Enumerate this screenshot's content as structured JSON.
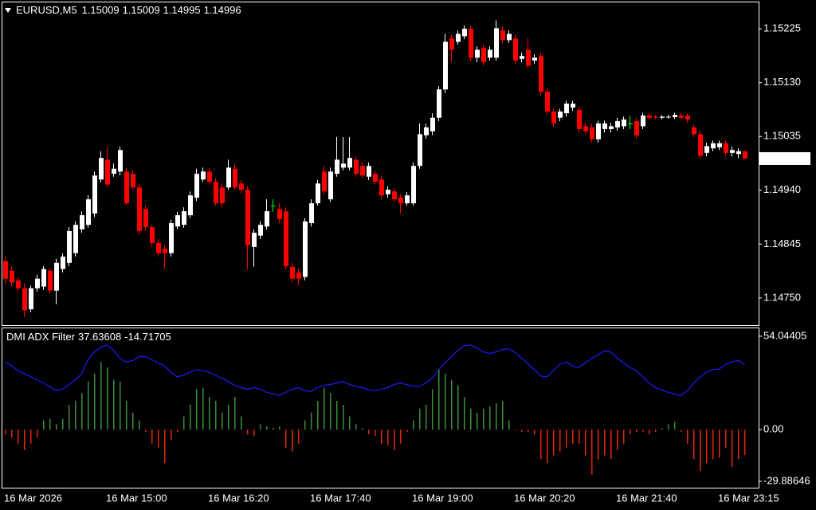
{
  "chart_data": [
    {
      "type": "candlestick",
      "title": "EURUSD,M5",
      "categories": [
        "16 Mar 2026",
        null,
        null,
        null,
        null,
        null,
        null,
        null,
        null,
        null,
        null,
        null,
        null,
        null,
        null,
        null,
        "16 Mar 15:00",
        null,
        null,
        null,
        null,
        null,
        null,
        null,
        null,
        null,
        null,
        null,
        null,
        null,
        null,
        null,
        "16 Mar 16:20",
        null,
        null,
        null,
        null,
        null,
        null,
        null,
        null,
        null,
        null,
        null,
        null,
        null,
        null,
        null,
        "16 Mar 17:40",
        null,
        null,
        null,
        null,
        null,
        null,
        null,
        null,
        null,
        null,
        null,
        null,
        null,
        null,
        null,
        "16 Mar 19:00",
        null,
        null,
        null,
        null,
        null,
        null,
        null,
        null,
        null,
        null,
        null,
        null,
        null,
        null,
        null,
        "16 Mar 20:20",
        null,
        null,
        null,
        null,
        null,
        null,
        null,
        null,
        null,
        null,
        null,
        null,
        null,
        null,
        null,
        "16 Mar 21:40",
        null,
        null,
        null,
        null,
        null,
        null,
        null,
        null,
        null,
        null,
        null,
        null,
        null,
        null,
        null,
        "16 Mar 23:15",
        null,
        null,
        null,
        null
      ],
      "open": [
        1.14815,
        1.14798,
        1.14781,
        1.14767,
        1.1473,
        1.14767,
        1.1477,
        1.14798,
        1.14763,
        1.14801,
        1.14812,
        1.14829,
        1.14871,
        1.14879,
        1.14899,
        1.14959,
        1.14994,
        1.14969,
        1.14973,
        1.14973,
        1.14969,
        1.14945,
        1.14907,
        1.14875,
        1.14847,
        1.14837,
        1.14829,
        1.14876,
        1.14879,
        1.14896,
        1.14927,
        1.14959,
        1.14973,
        1.14955,
        1.14945,
        1.14945,
        1.14978,
        1.14952,
        1.14941,
        1.1484,
        1.1486,
        1.14876,
        1.14913,
        1.14907,
        1.14903,
        1.14805,
        1.14795,
        1.14787,
        1.14882,
        1.14917,
        1.14973,
        1.14924,
        1.14969,
        1.1498,
        1.1498,
        1.14994,
        1.14983,
        1.14964,
        1.14969,
        1.14959,
        1.14933,
        1.14938,
        1.14927,
        1.14917,
        1.14917,
        1.14983,
        1.15037,
        1.15044,
        1.15068,
        1.15118,
        1.15208,
        1.15202,
        1.15212,
        1.15225,
        1.15174,
        1.15191,
        1.15174,
        1.15174,
        1.15222,
        1.15205,
        1.15208,
        1.15172,
        1.15188,
        1.15169,
        1.15177,
        1.15114,
        1.15079,
        1.15068,
        1.15076,
        1.15086,
        1.15082,
        1.15053,
        1.15051,
        1.1503,
        1.15048,
        1.15048,
        1.15051,
        1.15053,
        1.15058,
        1.15062,
        1.15053,
        1.15072,
        1.1507,
        1.15068,
        1.15069,
        1.15069,
        1.15072,
        1.15072,
        1.15051,
        1.15039,
        1.15006,
        1.15014,
        1.15016,
        1.15023,
        1.15006,
        1.15004,
        1.15009
      ],
      "high": [
        1.14823,
        1.14805,
        1.14787,
        1.14775,
        1.14772,
        1.14791,
        1.14806,
        1.14803,
        1.14819,
        1.14829,
        1.14875,
        1.14885,
        1.14903,
        1.14931,
        1.14973,
        1.15009,
        1.15016,
        1.14987,
        1.15017,
        1.1498,
        1.14975,
        1.14952,
        1.14913,
        1.14879,
        1.14854,
        1.14843,
        1.14888,
        1.14902,
        1.1491,
        1.14938,
        1.14978,
        1.1498,
        1.1498,
        1.14961,
        1.14952,
        1.14994,
        1.14987,
        1.14958,
        1.14947,
        1.14871,
        1.14885,
        1.14924,
        1.14924,
        1.14917,
        1.1491,
        1.14812,
        1.14801,
        1.14891,
        1.14924,
        1.14958,
        1.14983,
        1.1498,
        1.15034,
        1.15034,
        1.15034,
        1.15,
        1.14989,
        1.14989,
        1.14975,
        1.14966,
        1.14947,
        1.14944,
        1.14933,
        1.14937,
        1.14989,
        1.15058,
        1.15058,
        1.15076,
        1.15124,
        1.15216,
        1.15214,
        1.15222,
        1.15231,
        1.15231,
        1.15194,
        1.15197,
        1.15194,
        1.1524,
        1.15228,
        1.15222,
        1.15214,
        1.15183,
        1.15208,
        1.1518,
        1.15183,
        1.1512,
        1.15084,
        1.15084,
        1.15098,
        1.15098,
        1.15087,
        1.15059,
        1.15056,
        1.15063,
        1.15063,
        1.15059,
        1.15068,
        1.1507,
        1.15072,
        1.15068,
        1.15077,
        1.15076,
        1.15073,
        1.15073,
        1.15073,
        1.15077,
        1.15076,
        1.15076,
        1.15056,
        1.15045,
        1.15024,
        1.15028,
        1.15028,
        1.15028,
        1.15017,
        1.15014,
        1.15009
      ],
      "low": [
        1.14775,
        1.1477,
        1.14761,
        1.14716,
        1.14725,
        1.14761,
        1.14764,
        1.14758,
        1.14739,
        1.14795,
        1.14806,
        1.14823,
        1.14865,
        1.14874,
        1.14893,
        1.14954,
        1.14944,
        1.14964,
        1.14966,
        1.14913,
        1.14941,
        1.14862,
        1.14868,
        1.1484,
        1.14823,
        1.14801,
        1.14823,
        1.14871,
        1.14874,
        1.14891,
        1.14921,
        1.14955,
        1.1495,
        1.14913,
        1.1491,
        1.14941,
        1.14941,
        1.14935,
        1.14801,
        1.14805,
        1.14854,
        1.14871,
        1.14902,
        1.14882,
        1.14801,
        1.14777,
        1.14772,
        1.14781,
        1.14876,
        1.14913,
        1.14933,
        1.14919,
        1.14964,
        1.14975,
        1.14975,
        1.14964,
        1.14961,
        1.14958,
        1.1495,
        1.14924,
        1.14927,
        1.14919,
        1.14899,
        1.14913,
        1.14913,
        1.14978,
        1.15031,
        1.15037,
        1.15062,
        1.15112,
        1.15166,
        1.15197,
        1.15207,
        1.15169,
        1.15166,
        1.1516,
        1.15169,
        1.15169,
        1.152,
        1.152,
        1.15163,
        1.15166,
        1.15155,
        1.15163,
        1.15108,
        1.15073,
        1.15052,
        1.15062,
        1.1507,
        1.1508,
        1.15042,
        1.15038,
        1.15024,
        1.15024,
        1.15042,
        1.15042,
        1.15045,
        1.15048,
        1.15048,
        1.15031,
        1.15048,
        1.15065,
        1.15065,
        1.15065,
        1.15066,
        1.15066,
        1.15065,
        1.15059,
        1.15034,
        1.14996,
        1.15,
        1.15009,
        1.15011,
        1.15,
        1.15,
        1.14997,
        1.14995
      ],
      "close": [
        1.14784,
        1.14777,
        1.14767,
        1.14728,
        1.14767,
        1.14784,
        1.14801,
        1.14763,
        1.14812,
        1.14823,
        1.14868,
        1.14879,
        1.14896,
        1.14924,
        1.14966,
        1.14997,
        1.1495,
        1.14978,
        1.15011,
        1.14917,
        1.14945,
        1.14868,
        1.14875,
        1.14847,
        1.14829,
        1.14829,
        1.14882,
        1.14896,
        1.14903,
        1.14931,
        1.14969,
        1.14973,
        1.14955,
        1.14917,
        1.14917,
        1.1498,
        1.14945,
        1.14941,
        1.14843,
        1.14865,
        1.14879,
        1.14903,
        1.14913,
        1.14889,
        1.14806,
        1.14784,
        1.14784,
        1.14885,
        1.14917,
        1.14952,
        1.14938,
        1.14973,
        1.14994,
        1.14987,
        1.14997,
        1.14969,
        1.14966,
        1.14983,
        1.14955,
        1.14931,
        1.14941,
        1.14924,
        1.14917,
        1.14931,
        1.14983,
        1.15039,
        1.15051,
        1.15068,
        1.15118,
        1.15202,
        1.15188,
        1.15216,
        1.15225,
        1.15174,
        1.15188,
        1.15166,
        1.15188,
        1.15226,
        1.15205,
        1.15216,
        1.15169,
        1.15177,
        1.1516,
        1.15174,
        1.15114,
        1.15079,
        1.15058,
        1.15079,
        1.15093,
        1.15093,
        1.15048,
        1.15044,
        1.1503,
        1.15058,
        1.15058,
        1.15053,
        1.15062,
        1.15065,
        1.15058,
        1.15037,
        1.15072,
        1.15068,
        1.15068,
        1.1507,
        1.1507,
        1.15073,
        1.15068,
        1.15065,
        1.15039,
        1.15001,
        1.15018,
        1.15023,
        1.15023,
        1.15006,
        1.15011,
        1.15009,
        1.14996
      ],
      "up_color": "#ffffff",
      "down_color": "#ff0000",
      "doji_color": "#00ff00",
      "ylim": [
        1.14702,
        1.15273
      ],
      "yticks": [
        1.15225,
        {
          "value": 1.1513,
          "label": "1.15130"
        },
        1.15035,
        {
          "value": 1.1494,
          "label": "1.14940"
        },
        1.14845,
        {
          "value": 1.1475,
          "label": "1.14750"
        }
      ]
    },
    {
      "type": "indicator",
      "title": "DMI ADX Filter",
      "series": [
        {
          "type": "line",
          "color": "#1c1cff",
          "values": [
            39.2,
            36.9,
            34.2,
            32.4,
            30.6,
            28.8,
            27.0,
            24.8,
            22.5,
            23.4,
            26.1,
            28.8,
            32.4,
            40.5,
            45.0,
            47.7,
            49.1,
            45.9,
            41.4,
            39.2,
            40.1,
            42.3,
            42.3,
            40.5,
            38.7,
            36.9,
            33.3,
            30.6,
            31.5,
            33.3,
            34.7,
            34.2,
            33.3,
            31.5,
            29.7,
            27.9,
            25.7,
            24.3,
            23.4,
            24.3,
            23.4,
            21.6,
            20.7,
            19.8,
            21.6,
            23.4,
            24.3,
            22.5,
            22.1,
            24.3,
            25.7,
            26.1,
            27.0,
            27.9,
            26.1,
            25.2,
            24.3,
            23.0,
            22.5,
            23.4,
            24.3,
            26.1,
            27.0,
            26.1,
            25.2,
            25.2,
            27.0,
            29.7,
            34.7,
            38.7,
            42.3,
            45.9,
            48.6,
            49.1,
            47.3,
            45.0,
            44.1,
            45.0,
            46.4,
            46.8,
            44.6,
            41.4,
            38.3,
            34.7,
            31.1,
            30.6,
            34.2,
            37.8,
            39.2,
            36.9,
            36.0,
            38.7,
            41.4,
            43.2,
            45.5,
            45.0,
            41.4,
            38.7,
            36.0,
            34.2,
            30.6,
            27.0,
            24.3,
            23.0,
            21.6,
            20.7,
            19.8,
            22.5,
            27.0,
            30.6,
            33.3,
            34.7,
            35.1,
            37.8,
            39.2,
            40.1,
            37.63608
          ]
        },
        {
          "type": "histogram",
          "color": "#3a8f3a",
          "negative_color": "#e8260c",
          "values": [
            -2.7,
            -4.5,
            -8.1,
            -11.7,
            -8.1,
            -4.5,
            5.4,
            6.3,
            3.2,
            6.3,
            14.4,
            16.7,
            21.2,
            27.9,
            32.4,
            39.2,
            36.0,
            28.8,
            27.9,
            16.7,
            9.9,
            5.4,
            -1.4,
            -8.1,
            -10.4,
            -19.4,
            -5.9,
            -1.4,
            7.7,
            14.4,
            23.4,
            24.3,
            18.9,
            16.7,
            9.9,
            14.4,
            18.9,
            7.7,
            -2.7,
            -3.6,
            3.2,
            1.8,
            0.9,
            1.8,
            -10.4,
            -12.6,
            -8.1,
            5.4,
            9.9,
            16.7,
            24.3,
            21.2,
            16.7,
            14.4,
            7.7,
            3.2,
            0.9,
            -2.7,
            -3.6,
            -8.1,
            -9.0,
            -11.7,
            -8.1,
            -1.4,
            5.4,
            12.2,
            14.4,
            23.4,
            34.7,
            32.4,
            28.8,
            25.7,
            18.9,
            12.2,
            9.9,
            12.2,
            13.5,
            15.3,
            16.7,
            5.4,
            -0.5,
            -1.4,
            -1.4,
            -2.7,
            -17.1,
            -19.4,
            -14.9,
            -12.6,
            -10.4,
            -8.1,
            -8.1,
            -14.9,
            -26.1,
            -17.1,
            -14.9,
            -17.1,
            -11.7,
            -8.1,
            -2.7,
            -1.4,
            -1.4,
            -2.7,
            -1.4,
            0.9,
            3.2,
            4.5,
            -1.4,
            -8.1,
            -17.1,
            -23.9,
            -19.4,
            -17.1,
            -16.2,
            -10.4,
            -21.6,
            -17.1,
            -14.71705
          ]
        }
      ],
      "ylim": [
        -29.88646,
        54.04405
      ],
      "yticks": [
        54.04405,
        {
          "value": 0,
          "label": "0.00"
        },
        -29.88646
      ]
    }
  ]
}
